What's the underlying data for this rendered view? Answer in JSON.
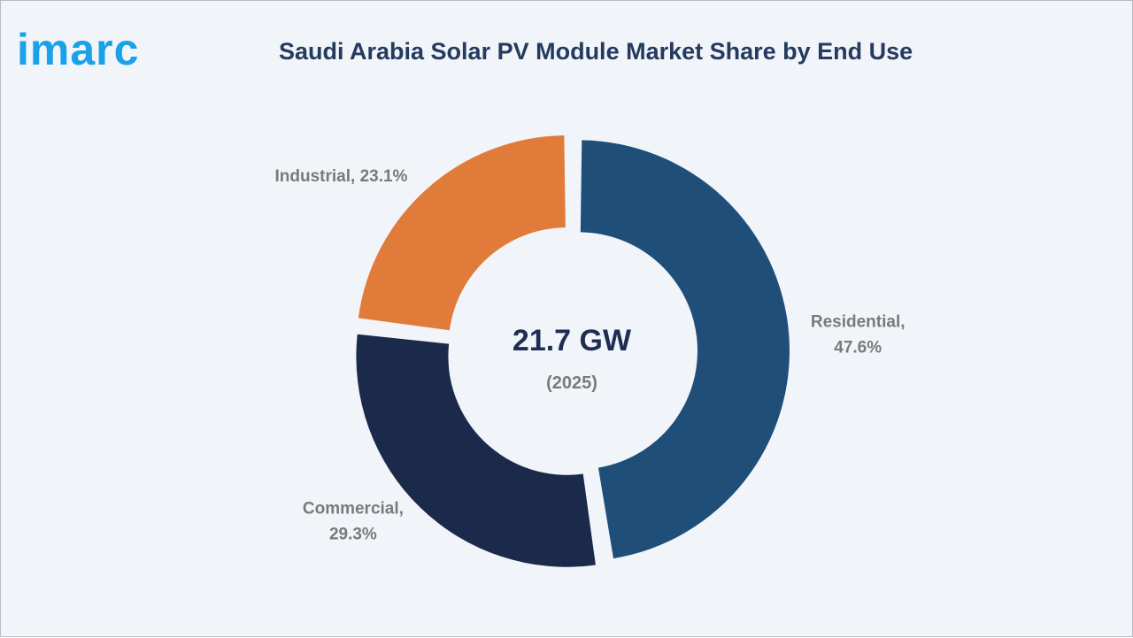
{
  "brand": {
    "logo_text": "imarc",
    "logo_color": "#1aa2e8"
  },
  "colors": {
    "background": "#f1f4f9",
    "title": "#243a5e",
    "label": "#7a7a7a",
    "center_value": "#1e2e52"
  },
  "chart_data": {
    "type": "pie",
    "variant": "donut",
    "title": "Saudi Arabia Solar PV Module Market Share by End Use",
    "center": {
      "value": "21.7 GW",
      "subtitle": "(2025)"
    },
    "slices": [
      {
        "name": "Residential",
        "value": 47.6,
        "label_lines": [
          "Residential,",
          "47.6%"
        ],
        "color": "#1f4e79"
      },
      {
        "name": "Commercial",
        "value": 29.3,
        "label_lines": [
          "Commercial,",
          "29.3%"
        ],
        "color": "#1b2a4a"
      },
      {
        "name": "Industrial",
        "value": 23.1,
        "label_lines": [
          "Industrial, 23.1%"
        ],
        "color": "#e07b39"
      }
    ],
    "start": "top",
    "direction": "clockwise",
    "legend": "none"
  }
}
